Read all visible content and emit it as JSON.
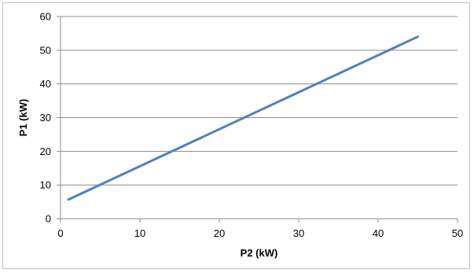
{
  "chart_data": {
    "type": "line",
    "title": "",
    "xlabel": "P2 (kW)",
    "ylabel": "P1 (kW)",
    "xlim": [
      0,
      50
    ],
    "ylim": [
      0,
      60
    ],
    "x_ticks": [
      "0",
      "10",
      "20",
      "30",
      "40",
      "50"
    ],
    "y_ticks": [
      "0",
      "10",
      "20",
      "30",
      "40",
      "50",
      "60"
    ],
    "grid": "horizontal",
    "legend": "none",
    "series": [
      {
        "color": "#4f81bd",
        "x": [
          1,
          45
        ],
        "y": [
          5.7,
          54
        ]
      }
    ]
  }
}
